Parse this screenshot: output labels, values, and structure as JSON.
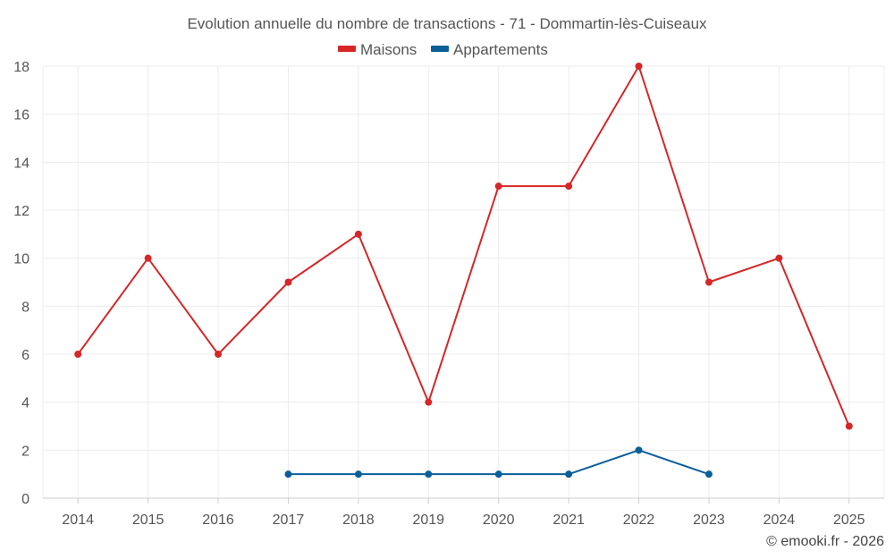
{
  "chart_data": {
    "type": "line",
    "title": "Evolution annuelle du nombre de transactions - 71 - Dommartin-lès-Cuiseaux",
    "categories": [
      "2014",
      "2015",
      "2016",
      "2017",
      "2018",
      "2019",
      "2020",
      "2021",
      "2022",
      "2023",
      "2024",
      "2025"
    ],
    "series": [
      {
        "name": "Maisons",
        "color": "#d62728",
        "values": [
          6,
          10,
          6,
          9,
          11,
          4,
          13,
          13,
          18,
          9,
          10,
          3
        ]
      },
      {
        "name": "Appartements",
        "color": "#0a5f9a",
        "values": [
          null,
          null,
          null,
          1,
          1,
          1,
          1,
          1,
          2,
          1,
          null,
          null
        ]
      }
    ],
    "ylim": [
      0,
      18
    ],
    "yticks": [
      0,
      2,
      4,
      6,
      8,
      10,
      12,
      14,
      16,
      18
    ],
    "grid": true,
    "legend": "top-center",
    "xlabel": "",
    "ylabel": ""
  },
  "credit": "© emooki.fr - 2026"
}
